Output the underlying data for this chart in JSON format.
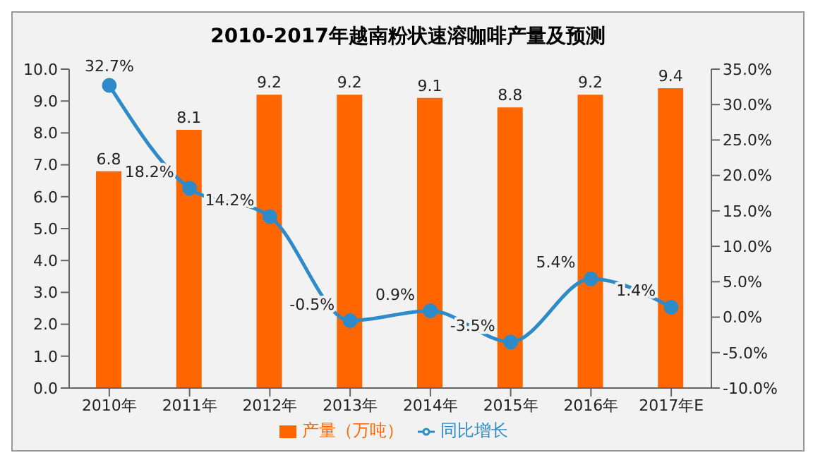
{
  "chart_data": {
    "type": "bar",
    "title": "2010-2017年越南粉状速溶咖啡产量及预测",
    "categories": [
      "2010年",
      "2011年",
      "2012年",
      "2013年",
      "2014年",
      "2015年",
      "2016年",
      "2017年E"
    ],
    "series": [
      {
        "name": "产量（万吨）",
        "color": "#ff6600",
        "values": [
          6.8,
          8.1,
          9.2,
          9.2,
          9.1,
          8.8,
          9.2,
          9.4
        ]
      },
      {
        "name": "同比增长",
        "type": "line",
        "axis": "y2",
        "color": "#2e8bc9",
        "values": [
          32.7,
          18.2,
          14.2,
          -0.5,
          0.9,
          -3.5,
          5.4,
          1.4
        ],
        "value_labels": [
          "32.7%",
          "18.2%",
          "14.2%",
          "-0.5%",
          "0.9%",
          "-3.5%",
          "5.4%",
          "1.4%"
        ]
      }
    ],
    "data_labels": true,
    "ylim": [
      0,
      10
    ],
    "yticks": [
      {
        "value": 0,
        "label": "0.0"
      },
      {
        "value": 1,
        "label": "1.0"
      },
      {
        "value": 2,
        "label": "2.0"
      },
      {
        "value": 3,
        "label": "3.0"
      },
      {
        "value": 4,
        "label": "4.0"
      },
      {
        "value": 5,
        "label": "5.0"
      },
      {
        "value": 6,
        "label": "6.0"
      },
      {
        "value": 7,
        "label": "7.0"
      },
      {
        "value": 8,
        "label": "8.0"
      },
      {
        "value": 9,
        "label": "9.0"
      },
      {
        "value": 10,
        "label": "10.0"
      }
    ],
    "y2lim": [
      -10,
      35
    ],
    "y2ticks": [
      {
        "value": -10,
        "label": "-10.0%"
      },
      {
        "value": -5,
        "label": "-5.0%"
      },
      {
        "value": 0,
        "label": "0.0%"
      },
      {
        "value": 5,
        "label": "5.0%"
      },
      {
        "value": 10,
        "label": "10.0%"
      },
      {
        "value": 15,
        "label": "15.0%"
      },
      {
        "value": 20,
        "label": "20.0%"
      },
      {
        "value": 25,
        "label": "25.0%"
      },
      {
        "value": 30,
        "label": "30.0%"
      },
      {
        "value": 35,
        "label": "35.0%"
      }
    ],
    "legend": "bottom",
    "marker": "circle",
    "grid": false
  }
}
